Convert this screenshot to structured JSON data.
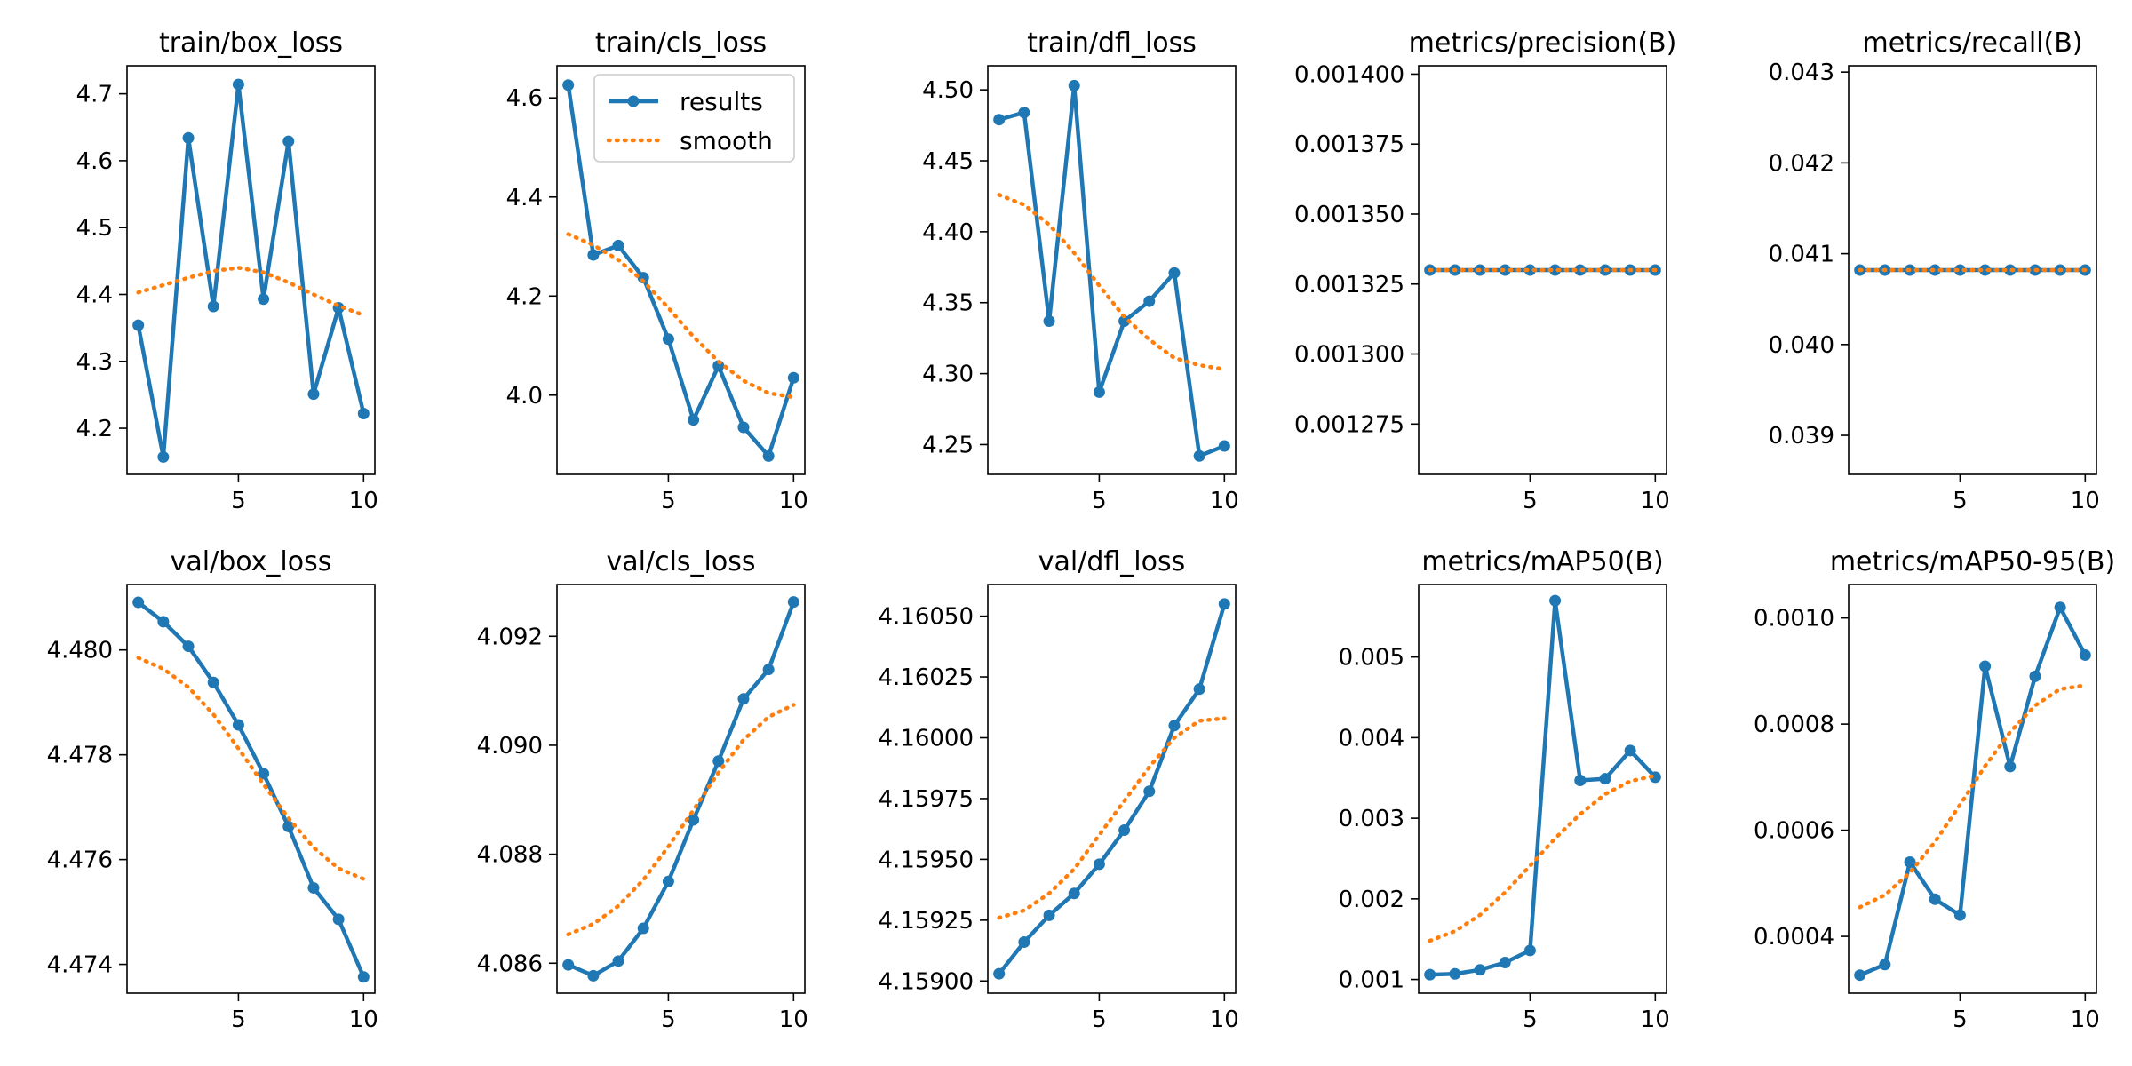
{
  "legend": {
    "placement": "top-right",
    "subplot": 1,
    "entries": [
      "results",
      "smooth"
    ]
  },
  "colors": {
    "results": "#1f77b4",
    "smooth": "#ff7f0e",
    "frame": "#000000",
    "background": "#ffffff"
  },
  "chart_data": [
    {
      "type": "line",
      "title": "train/box_loss",
      "x": [
        1,
        2,
        3,
        4,
        5,
        6,
        7,
        8,
        9,
        10
      ],
      "series": [
        {
          "name": "results",
          "values": [
            4.354,
            4.157,
            4.634,
            4.382,
            4.714,
            4.393,
            4.629,
            4.251,
            4.38,
            4.222
          ]
        },
        {
          "name": "smooth",
          "values": [
            4.403,
            4.414,
            4.425,
            4.435,
            4.44,
            4.433,
            4.418,
            4.4,
            4.383,
            4.369
          ]
        }
      ],
      "xlim": [
        0.55,
        10.45
      ],
      "ylim": [
        4.131,
        4.742
      ],
      "xticks": [
        {
          "value": 5,
          "label": "5"
        },
        {
          "value": 10,
          "label": "10"
        }
      ],
      "yticks": [
        {
          "value": 4.2,
          "label": "4.2"
        },
        {
          "value": 4.3,
          "label": "4.3"
        },
        {
          "value": 4.4,
          "label": "4.4"
        },
        {
          "value": 4.5,
          "label": "4.5"
        },
        {
          "value": 4.6,
          "label": "4.6"
        },
        {
          "value": 4.7,
          "label": "4.7"
        }
      ]
    },
    {
      "type": "line",
      "title": "train/cls_loss",
      "x": [
        1,
        2,
        3,
        4,
        5,
        6,
        7,
        8,
        9,
        10
      ],
      "series": [
        {
          "name": "results",
          "values": [
            4.626,
            4.283,
            4.302,
            4.237,
            4.113,
            3.95,
            4.059,
            3.935,
            3.877,
            4.035
          ]
        },
        {
          "name": "smooth",
          "values": [
            4.325,
            4.303,
            4.273,
            4.23,
            4.176,
            4.118,
            4.068,
            4.029,
            4.004,
            3.996
          ]
        }
      ],
      "xlim": [
        0.55,
        10.45
      ],
      "ylim": [
        3.84,
        4.665
      ],
      "xticks": [
        {
          "value": 5,
          "label": "5"
        },
        {
          "value": 10,
          "label": "10"
        }
      ],
      "yticks": [
        {
          "value": 4.0,
          "label": "4.0"
        },
        {
          "value": 4.2,
          "label": "4.2"
        },
        {
          "value": 4.4,
          "label": "4.4"
        },
        {
          "value": 4.6,
          "label": "4.6"
        }
      ]
    },
    {
      "type": "line",
      "title": "train/dfl_loss",
      "x": [
        1,
        2,
        3,
        4,
        5,
        6,
        7,
        8,
        9,
        10
      ],
      "series": [
        {
          "name": "results",
          "values": [
            4.479,
            4.484,
            4.337,
            4.503,
            4.287,
            4.337,
            4.351,
            4.371,
            4.242,
            4.249
          ]
        },
        {
          "name": "smooth",
          "values": [
            4.426,
            4.419,
            4.405,
            4.385,
            4.362,
            4.34,
            4.324,
            4.311,
            4.306,
            4.303
          ]
        }
      ],
      "xlim": [
        0.55,
        10.45
      ],
      "ylim": [
        4.229,
        4.517
      ],
      "xticks": [
        {
          "value": 5,
          "label": "5"
        },
        {
          "value": 10,
          "label": "10"
        }
      ],
      "yticks": [
        {
          "value": 4.25,
          "label": "4.25"
        },
        {
          "value": 4.3,
          "label": "4.30"
        },
        {
          "value": 4.35,
          "label": "4.35"
        },
        {
          "value": 4.4,
          "label": "4.40"
        },
        {
          "value": 4.45,
          "label": "4.45"
        },
        {
          "value": 4.5,
          "label": "4.50"
        }
      ]
    },
    {
      "type": "line",
      "title": "metrics/precision(B)",
      "x": [
        1,
        2,
        3,
        4,
        5,
        6,
        7,
        8,
        9,
        10
      ],
      "series": [
        {
          "name": "results",
          "values": [
            0.00133,
            0.00133,
            0.00133,
            0.00133,
            0.00133,
            0.00133,
            0.00133,
            0.00133,
            0.00133,
            0.00133
          ]
        },
        {
          "name": "smooth",
          "values": [
            0.00133,
            0.00133,
            0.00133,
            0.00133,
            0.00133,
            0.00133,
            0.00133,
            0.00133,
            0.00133,
            0.00133
          ]
        }
      ],
      "xlim": [
        0.55,
        10.45
      ],
      "ylim": [
        0.001257,
        0.001403
      ],
      "xticks": [
        {
          "value": 5,
          "label": "5"
        },
        {
          "value": 10,
          "label": "10"
        }
      ],
      "yticks": [
        {
          "value": 0.001275,
          "label": "0.001275"
        },
        {
          "value": 0.0013,
          "label": "0.001300"
        },
        {
          "value": 0.001325,
          "label": "0.001325"
        },
        {
          "value": 0.00135,
          "label": "0.001350"
        },
        {
          "value": 0.001375,
          "label": "0.001375"
        },
        {
          "value": 0.0014,
          "label": "0.001400"
        }
      ]
    },
    {
      "type": "line",
      "title": "metrics/recall(B)",
      "x": [
        1,
        2,
        3,
        4,
        5,
        6,
        7,
        8,
        9,
        10
      ],
      "series": [
        {
          "name": "results",
          "values": [
            0.04082,
            0.04082,
            0.04082,
            0.04082,
            0.04082,
            0.04082,
            0.04082,
            0.04082,
            0.04082,
            0.04082
          ]
        },
        {
          "name": "smooth",
          "values": [
            0.04082,
            0.04082,
            0.04082,
            0.04082,
            0.04082,
            0.04082,
            0.04082,
            0.04082,
            0.04082,
            0.04082
          ]
        }
      ],
      "xlim": [
        0.55,
        10.45
      ],
      "ylim": [
        0.03857,
        0.04307
      ],
      "xticks": [
        {
          "value": 5,
          "label": "5"
        },
        {
          "value": 10,
          "label": "10"
        }
      ],
      "yticks": [
        {
          "value": 0.039,
          "label": "0.039"
        },
        {
          "value": 0.04,
          "label": "0.040"
        },
        {
          "value": 0.041,
          "label": "0.041"
        },
        {
          "value": 0.042,
          "label": "0.042"
        },
        {
          "value": 0.043,
          "label": "0.043"
        }
      ]
    },
    {
      "type": "line",
      "title": "val/box_loss",
      "x": [
        1,
        2,
        3,
        4,
        5,
        6,
        7,
        8,
        9,
        10
      ],
      "series": [
        {
          "name": "results",
          "values": [
            4.48091,
            4.48054,
            4.48007,
            4.47938,
            4.47857,
            4.47764,
            4.47663,
            4.47546,
            4.47486,
            4.47376
          ]
        },
        {
          "name": "smooth",
          "values": [
            4.47985,
            4.47964,
            4.47929,
            4.47877,
            4.47812,
            4.47744,
            4.47679,
            4.47623,
            4.47583,
            4.47563
          ]
        }
      ],
      "xlim": [
        0.55,
        10.45
      ],
      "ylim": [
        4.47345,
        4.48125
      ],
      "xticks": [
        {
          "value": 5,
          "label": "5"
        },
        {
          "value": 10,
          "label": "10"
        }
      ],
      "yticks": [
        {
          "value": 4.474,
          "label": "4.474"
        },
        {
          "value": 4.476,
          "label": "4.476"
        },
        {
          "value": 4.478,
          "label": "4.478"
        },
        {
          "value": 4.48,
          "label": "4.480"
        }
      ]
    },
    {
      "type": "line",
      "title": "val/cls_loss",
      "x": [
        1,
        2,
        3,
        4,
        5,
        6,
        7,
        8,
        9,
        10
      ],
      "series": [
        {
          "name": "results",
          "values": [
            4.08597,
            4.08577,
            4.08604,
            4.08664,
            4.0875,
            4.08863,
            4.08971,
            4.09085,
            4.09139,
            4.09263
          ]
        },
        {
          "name": "smooth",
          "values": [
            4.08653,
            4.08672,
            4.08705,
            4.08753,
            4.08814,
            4.08881,
            4.0895,
            4.0901,
            4.09052,
            4.09074
          ]
        }
      ],
      "xlim": [
        0.55,
        10.45
      ],
      "ylim": [
        4.08545,
        4.09295
      ],
      "xticks": [
        {
          "value": 5,
          "label": "5"
        },
        {
          "value": 10,
          "label": "10"
        }
      ],
      "yticks": [
        {
          "value": 4.086,
          "label": "4.086"
        },
        {
          "value": 4.088,
          "label": "4.088"
        },
        {
          "value": 4.09,
          "label": "4.090"
        },
        {
          "value": 4.092,
          "label": "4.092"
        }
      ]
    },
    {
      "type": "line",
      "title": "val/dfl_loss",
      "x": [
        1,
        2,
        3,
        4,
        5,
        6,
        7,
        8,
        9,
        10
      ],
      "series": [
        {
          "name": "results",
          "values": [
            4.15903,
            4.15916,
            4.15927,
            4.15936,
            4.15948,
            4.15962,
            4.15978,
            4.16005,
            4.1602,
            4.16055
          ]
        },
        {
          "name": "smooth",
          "values": [
            4.15926,
            4.15929,
            4.15936,
            4.15946,
            4.1596,
            4.15974,
            4.15988,
            4.16,
            4.16007,
            4.16008
          ]
        }
      ],
      "xlim": [
        0.55,
        10.45
      ],
      "ylim": [
        4.15895,
        4.16063
      ],
      "xticks": [
        {
          "value": 5,
          "label": "5"
        },
        {
          "value": 10,
          "label": "10"
        }
      ],
      "yticks": [
        {
          "value": 4.159,
          "label": "4.15900"
        },
        {
          "value": 4.15925,
          "label": "4.15925"
        },
        {
          "value": 4.1595,
          "label": "4.15950"
        },
        {
          "value": 4.15975,
          "label": "4.15975"
        },
        {
          "value": 4.16,
          "label": "4.16000"
        },
        {
          "value": 4.16025,
          "label": "4.16025"
        },
        {
          "value": 4.1605,
          "label": "4.16050"
        }
      ]
    },
    {
      "type": "line",
      "title": "metrics/mAP50(B)",
      "x": [
        1,
        2,
        3,
        4,
        5,
        6,
        7,
        8,
        9,
        10
      ],
      "series": [
        {
          "name": "results",
          "values": [
            0.00106,
            0.00107,
            0.00112,
            0.00121,
            0.00136,
            0.0057,
            0.00347,
            0.00349,
            0.00384,
            0.00351
          ]
        },
        {
          "name": "smooth",
          "values": [
            0.00148,
            0.0016,
            0.0018,
            0.00208,
            0.00241,
            0.00275,
            0.00305,
            0.0033,
            0.00346,
            0.00353
          ]
        }
      ],
      "xlim": [
        0.55,
        10.45
      ],
      "ylim": [
        0.00083,
        0.0059
      ],
      "xticks": [
        {
          "value": 5,
          "label": "5"
        },
        {
          "value": 10,
          "label": "10"
        }
      ],
      "yticks": [
        {
          "value": 0.001,
          "label": "0.001"
        },
        {
          "value": 0.002,
          "label": "0.002"
        },
        {
          "value": 0.003,
          "label": "0.003"
        },
        {
          "value": 0.004,
          "label": "0.004"
        },
        {
          "value": 0.005,
          "label": "0.005"
        }
      ]
    },
    {
      "type": "line",
      "title": "metrics/mAP50-95(B)",
      "x": [
        1,
        2,
        3,
        4,
        5,
        6,
        7,
        8,
        9,
        10
      ],
      "series": [
        {
          "name": "results",
          "values": [
            0.000327,
            0.000347,
            0.00054,
            0.00047,
            0.00044,
            0.000909,
            0.00072,
            0.00089,
            0.00102,
            0.00093
          ]
        },
        {
          "name": "smooth",
          "values": [
            0.000455,
            0.000478,
            0.00052,
            0.000578,
            0.000648,
            0.000721,
            0.000785,
            0.000835,
            0.000866,
            0.000873
          ]
        }
      ],
      "xlim": [
        0.55,
        10.45
      ],
      "ylim": [
        0.000293,
        0.001063
      ],
      "xticks": [
        {
          "value": 5,
          "label": "5"
        },
        {
          "value": 10,
          "label": "10"
        }
      ],
      "yticks": [
        {
          "value": 0.0004,
          "label": "0.0004"
        },
        {
          "value": 0.0006,
          "label": "0.0006"
        },
        {
          "value": 0.0008,
          "label": "0.0008"
        },
        {
          "value": 0.001,
          "label": "0.0010"
        }
      ]
    }
  ]
}
